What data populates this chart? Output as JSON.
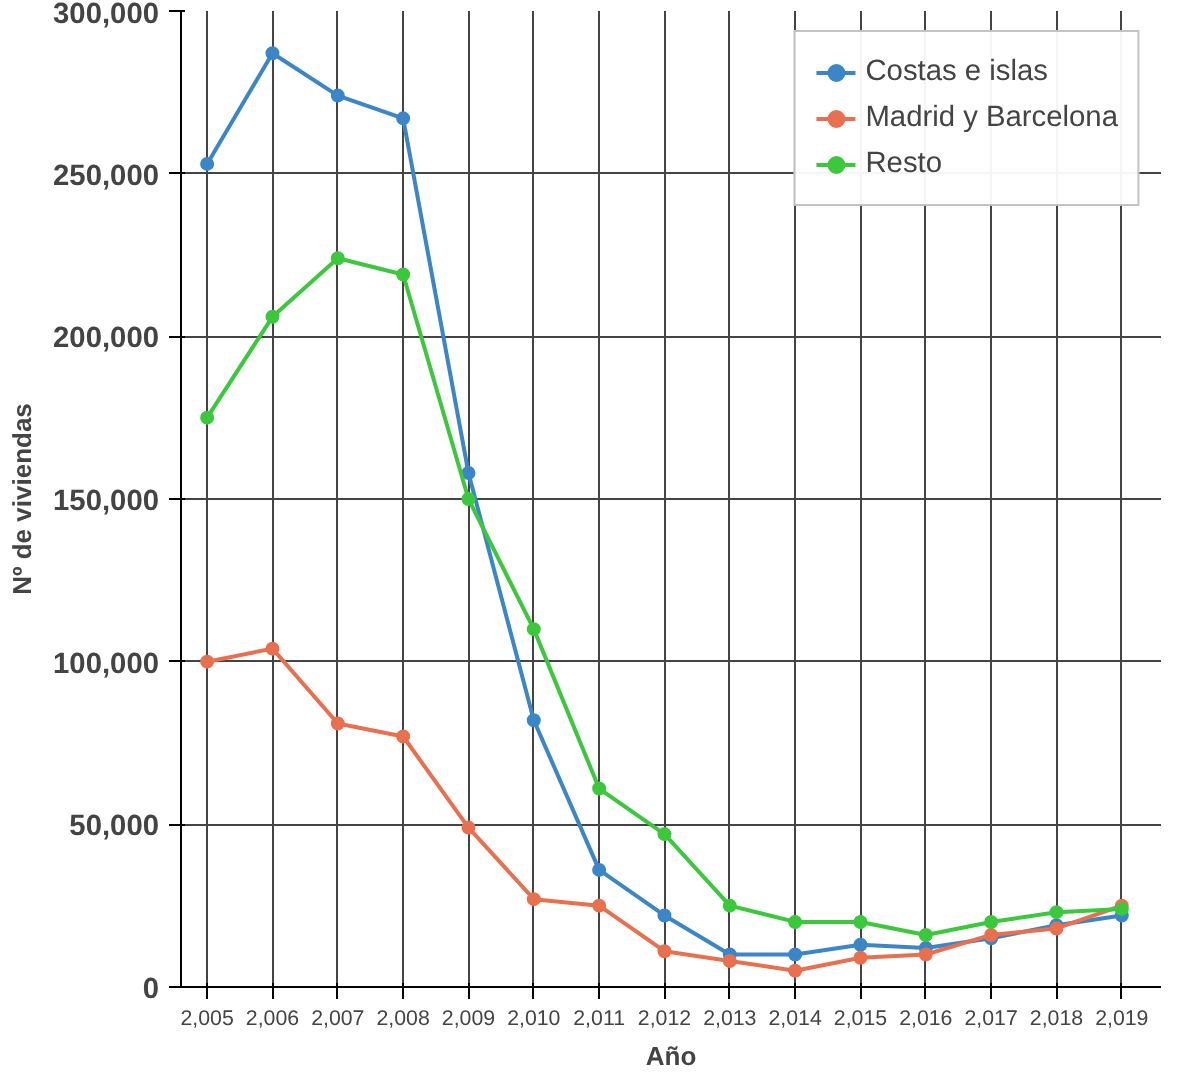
{
  "chart_data": {
    "type": "line",
    "xlabel": "Año",
    "ylabel": "Nº de viviendas",
    "x": [
      2005,
      2006,
      2007,
      2008,
      2009,
      2010,
      2011,
      2012,
      2013,
      2014,
      2015,
      2016,
      2017,
      2018,
      2019
    ],
    "series": [
      {
        "name": "Costas e islas",
        "color": "#3a86c8",
        "values": [
          253000,
          287000,
          274000,
          267000,
          158000,
          82000,
          36000,
          22000,
          10000,
          10000,
          13000,
          12000,
          15000,
          19000,
          22000
        ]
      },
      {
        "name": "Madrid y Barcelona",
        "color": "#e8704f",
        "values": [
          100000,
          104000,
          81000,
          77000,
          49000,
          27000,
          25000,
          11000,
          8000,
          5000,
          9000,
          10000,
          16000,
          18000,
          25000
        ]
      },
      {
        "name": "Resto",
        "color": "#3cc83c",
        "values": [
          175000,
          206000,
          224000,
          219000,
          150000,
          110000,
          61000,
          47000,
          25000,
          20000,
          20000,
          16000,
          20000,
          23000,
          24000
        ]
      }
    ],
    "xlim": [
      2004.6,
      2019.6
    ],
    "ylim": [
      0,
      300000
    ],
    "xticks": [
      {
        "value": 2005,
        "label": "2,005"
      },
      {
        "value": 2006,
        "label": "2,006"
      },
      {
        "value": 2007,
        "label": "2,007"
      },
      {
        "value": 2008,
        "label": "2,008"
      },
      {
        "value": 2009,
        "label": "2,009"
      },
      {
        "value": 2010,
        "label": "2,010"
      },
      {
        "value": 2011,
        "label": "2,011"
      },
      {
        "value": 2012,
        "label": "2,012"
      },
      {
        "value": 2013,
        "label": "2,013"
      },
      {
        "value": 2014,
        "label": "2,014"
      },
      {
        "value": 2015,
        "label": "2,015"
      },
      {
        "value": 2016,
        "label": "2,016"
      },
      {
        "value": 2017,
        "label": "2,017"
      },
      {
        "value": 2018,
        "label": "2,018"
      },
      {
        "value": 2019,
        "label": "2,019"
      }
    ],
    "yticks": [
      {
        "value": 0,
        "label": "0"
      },
      {
        "value": 50000,
        "label": "50,000"
      },
      {
        "value": 100000,
        "label": "100,000"
      },
      {
        "value": 150000,
        "label": "150,000"
      },
      {
        "value": 200000,
        "label": "200,000"
      },
      {
        "value": 250000,
        "label": "250,000"
      },
      {
        "value": 300000,
        "label": "300,000"
      }
    ],
    "grid": true,
    "legend": "top right",
    "marker": "circle",
    "line_style": "solid"
  }
}
